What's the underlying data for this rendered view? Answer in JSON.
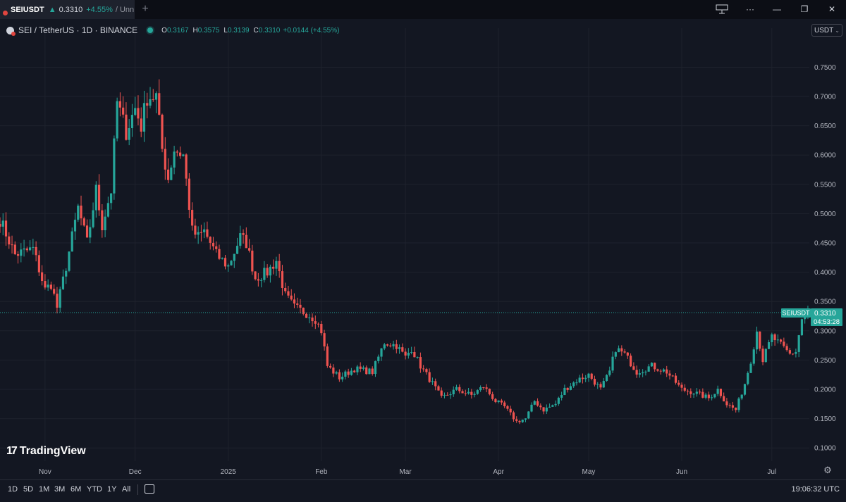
{
  "tab": {
    "symbol": "SEIUSDT",
    "arrow": "▲",
    "price": "0.3310",
    "change": "+4.55%",
    "rest": "/ Unn..."
  },
  "legend": {
    "title": "SEI / TetherUS · 1D · BINANCE",
    "o_label": "O",
    "o": "0.3167",
    "h_label": "H",
    "h": "0.3575",
    "l_label": "L",
    "l": "0.3139",
    "c_label": "C",
    "c": "0.3310",
    "change": "+0.0144 (+4.55%)"
  },
  "currency": "USDT",
  "price_tag": {
    "symbol": "SEIUSDT",
    "price": "0.3310",
    "countdown": "04:53:28"
  },
  "colors": {
    "up": "#26a69a",
    "down": "#ef5350",
    "grid": "#1e222d",
    "background": "#131722"
  },
  "ranges": [
    "1D",
    "5D",
    "1M",
    "3M",
    "6M",
    "YTD",
    "1Y",
    "All"
  ],
  "clock": "19:06:32 UTC",
  "brand": "TradingView",
  "icons": [
    "layout-icon",
    "more-icon",
    "minimize-icon",
    "restore-icon",
    "close-icon",
    "calendar-icon",
    "settings-icon"
  ],
  "chart_data": {
    "type": "candlestick",
    "title": "SEI / TetherUS · 1D · BINANCE",
    "start_date": "2024-10-17",
    "x_ticks": [
      {
        "label": "Nov",
        "date": "2024-11-01"
      },
      {
        "label": "Dec",
        "date": "2024-12-01"
      },
      {
        "label": "2025",
        "date": "2025-01-01"
      },
      {
        "label": "Feb",
        "date": "2025-02-01"
      },
      {
        "label": "Mar",
        "date": "2025-03-01"
      },
      {
        "label": "Apr",
        "date": "2025-04-01"
      },
      {
        "label": "May",
        "date": "2025-05-01"
      },
      {
        "label": "Jun",
        "date": "2025-06-01"
      },
      {
        "label": "Jul",
        "date": "2025-07-01"
      }
    ],
    "y_ticks": [
      "0.7500",
      "0.7000",
      "0.6500",
      "0.6000",
      "0.5500",
      "0.5000",
      "0.4500",
      "0.4000",
      "0.3500",
      "0.3000",
      "0.2500",
      "0.2000",
      "0.1500",
      "0.1000"
    ],
    "ylim": [
      0.0774,
      0.7926
    ],
    "last_price": 0.331,
    "anchors": [
      [
        "2024-10-17",
        0.49
      ],
      [
        "2024-10-22",
        0.43
      ],
      [
        "2024-10-28",
        0.44
      ],
      [
        "2024-11-01",
        0.37
      ],
      [
        "2024-11-03",
        0.38
      ],
      [
        "2024-11-05",
        0.34
      ],
      [
        "2024-11-08",
        0.41
      ],
      [
        "2024-11-12",
        0.51
      ],
      [
        "2024-11-15",
        0.45
      ],
      [
        "2024-11-18",
        0.54
      ],
      [
        "2024-11-20",
        0.48
      ],
      [
        "2024-11-23",
        0.54
      ],
      [
        "2024-11-25",
        0.69
      ],
      [
        "2024-11-28",
        0.64
      ],
      [
        "2024-12-01",
        0.68
      ],
      [
        "2024-12-03",
        0.65
      ],
      [
        "2024-12-05",
        0.7
      ],
      [
        "2024-12-08",
        0.7
      ],
      [
        "2024-12-10",
        0.61
      ],
      [
        "2024-12-12",
        0.56
      ],
      [
        "2024-12-14",
        0.61
      ],
      [
        "2024-12-17",
        0.6
      ],
      [
        "2024-12-20",
        0.47
      ],
      [
        "2024-12-22",
        0.46
      ],
      [
        "2024-12-24",
        0.47
      ],
      [
        "2024-12-28",
        0.43
      ],
      [
        "2025-01-01",
        0.41
      ],
      [
        "2025-01-05",
        0.46
      ],
      [
        "2025-01-07",
        0.45
      ],
      [
        "2025-01-10",
        0.39
      ],
      [
        "2025-01-14",
        0.4
      ],
      [
        "2025-01-17",
        0.42
      ],
      [
        "2025-01-20",
        0.36
      ],
      [
        "2025-01-23",
        0.34
      ],
      [
        "2025-01-27",
        0.33
      ],
      [
        "2025-01-30",
        0.32
      ],
      [
        "2025-02-01",
        0.3
      ],
      [
        "2025-02-03",
        0.24
      ],
      [
        "2025-02-07",
        0.22
      ],
      [
        "2025-02-12",
        0.235
      ],
      [
        "2025-02-18",
        0.23
      ],
      [
        "2025-02-22",
        0.28
      ],
      [
        "2025-02-26",
        0.275
      ],
      [
        "2025-03-01",
        0.255
      ],
      [
        "2025-03-03",
        0.27
      ],
      [
        "2025-03-06",
        0.24
      ],
      [
        "2025-03-10",
        0.21
      ],
      [
        "2025-03-13",
        0.185
      ],
      [
        "2025-03-18",
        0.2
      ],
      [
        "2025-03-23",
        0.19
      ],
      [
        "2025-03-27",
        0.205
      ],
      [
        "2025-03-31",
        0.18
      ],
      [
        "2025-04-03",
        0.17
      ],
      [
        "2025-04-07",
        0.145
      ],
      [
        "2025-04-10",
        0.15
      ],
      [
        "2025-04-13",
        0.18
      ],
      [
        "2025-04-16",
        0.165
      ],
      [
        "2025-04-20",
        0.175
      ],
      [
        "2025-04-23",
        0.2
      ],
      [
        "2025-04-27",
        0.215
      ],
      [
        "2025-05-01",
        0.225
      ],
      [
        "2025-05-05",
        0.2
      ],
      [
        "2025-05-08",
        0.23
      ],
      [
        "2025-05-10",
        0.27
      ],
      [
        "2025-05-13",
        0.26
      ],
      [
        "2025-05-17",
        0.23
      ],
      [
        "2025-05-22",
        0.24
      ],
      [
        "2025-05-27",
        0.23
      ],
      [
        "2025-06-01",
        0.2
      ],
      [
        "2025-06-05",
        0.195
      ],
      [
        "2025-06-10",
        0.185
      ],
      [
        "2025-06-13",
        0.2
      ],
      [
        "2025-06-16",
        0.175
      ],
      [
        "2025-06-19",
        0.165
      ],
      [
        "2025-06-22",
        0.21
      ],
      [
        "2025-06-24",
        0.25
      ],
      [
        "2025-06-26",
        0.3
      ],
      [
        "2025-06-28",
        0.25
      ],
      [
        "2025-07-01",
        0.29
      ],
      [
        "2025-07-04",
        0.275
      ],
      [
        "2025-07-07",
        0.26
      ],
      [
        "2025-07-09",
        0.265
      ],
      [
        "2025-07-11",
        0.32
      ],
      [
        "2025-07-13",
        0.331
      ]
    ],
    "last_candle": {
      "date": "2025-07-14",
      "o": 0.3167,
      "h": 0.3575,
      "l": 0.3139,
      "c": 0.331
    }
  }
}
